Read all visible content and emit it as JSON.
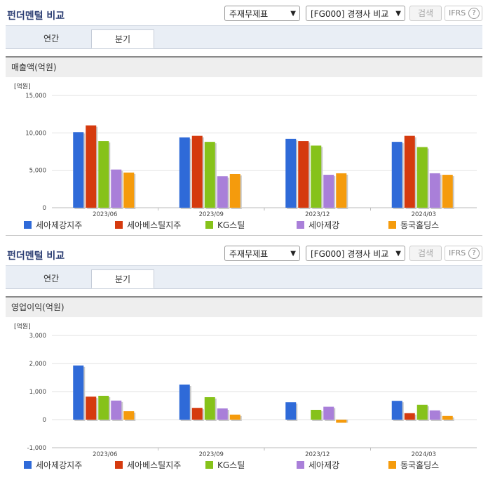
{
  "panels": [
    {
      "title": "펀더멘털 비교",
      "select_statement": "주재무제표",
      "select_group": "[FG000] 경쟁사 비교",
      "search_label": "검색",
      "ifrs_label": "IFRS",
      "ifrs_help": "?",
      "tabs": [
        "연간",
        "분기"
      ],
      "section_title": "매출액(억원)",
      "chart_data": {
        "type": "bar",
        "unit": "[억원]",
        "categories": [
          "2023/06",
          "2023/09",
          "2023/12",
          "2024/03"
        ],
        "ylim": [
          0,
          15000
        ],
        "ticks": [
          "15,000",
          "10,000",
          "5,000",
          "0"
        ],
        "tick_values": [
          15000,
          10000,
          5000,
          0
        ],
        "series": [
          {
            "name": "세아제강지주",
            "color": "#2f6ad8",
            "values": [
              10100,
              9400,
              9200,
              8800
            ]
          },
          {
            "name": "세아베스틸지주",
            "color": "#d53a0e",
            "values": [
              11000,
              9600,
              8900,
              9600
            ]
          },
          {
            "name": "KG스틸",
            "color": "#86c21a",
            "values": [
              8900,
              8800,
              8300,
              8100
            ]
          },
          {
            "name": "세아제강",
            "color": "#a97fd9",
            "values": [
              5100,
              4200,
              4400,
              4600
            ]
          },
          {
            "name": "동국홀딩스",
            "color": "#f59b0c",
            "values": [
              4700,
              4500,
              4600,
              4400
            ]
          }
        ]
      }
    },
    {
      "title": "펀더멘털 비교",
      "select_statement": "주재무제표",
      "select_group": "[FG000] 경쟁사 비교",
      "search_label": "검색",
      "ifrs_label": "IFRS",
      "ifrs_help": "?",
      "tabs": [
        "연간",
        "분기"
      ],
      "section_title": "영업이익(억원)",
      "chart_data": {
        "type": "bar",
        "unit": "[억원]",
        "categories": [
          "2023/06",
          "2023/09",
          "2023/12",
          "2024/03"
        ],
        "ylim": [
          -1000,
          3000
        ],
        "ticks": [
          "3,000",
          "2,000",
          "1,000",
          "0",
          "-1,000"
        ],
        "tick_values": [
          3000,
          2000,
          1000,
          0,
          -1000
        ],
        "series": [
          {
            "name": "세아제강지주",
            "color": "#2f6ad8",
            "values": [
              1930,
              1250,
              620,
              670
            ]
          },
          {
            "name": "세아베스틸지주",
            "color": "#d53a0e",
            "values": [
              820,
              420,
              0,
              230
            ]
          },
          {
            "name": "KG스틸",
            "color": "#86c21a",
            "values": [
              850,
              800,
              350,
              530
            ]
          },
          {
            "name": "세아제강",
            "color": "#a97fd9",
            "values": [
              680,
              400,
              460,
              330
            ]
          },
          {
            "name": "동국홀딩스",
            "color": "#f59b0c",
            "values": [
              300,
              180,
              -110,
              130
            ]
          }
        ]
      }
    }
  ]
}
